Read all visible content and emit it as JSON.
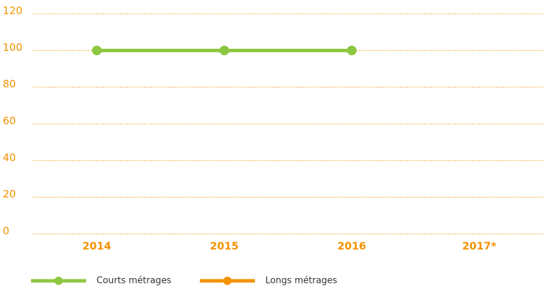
{
  "chart_data": {
    "type": "line",
    "categories": [
      "2014",
      "2015",
      "2016",
      "2017*"
    ],
    "series": [
      {
        "name": "Courts métrages",
        "color": "#8dc63f",
        "values": [
          100,
          100,
          100,
          null
        ]
      },
      {
        "name": "Longs métrages",
        "color": "#f39200",
        "values": [
          null,
          null,
          null,
          null
        ]
      }
    ],
    "ylim": [
      0,
      120
    ],
    "yticks": [
      0,
      20,
      40,
      60,
      80,
      100,
      120
    ],
    "grid": true,
    "grid_color": "#f39200"
  }
}
